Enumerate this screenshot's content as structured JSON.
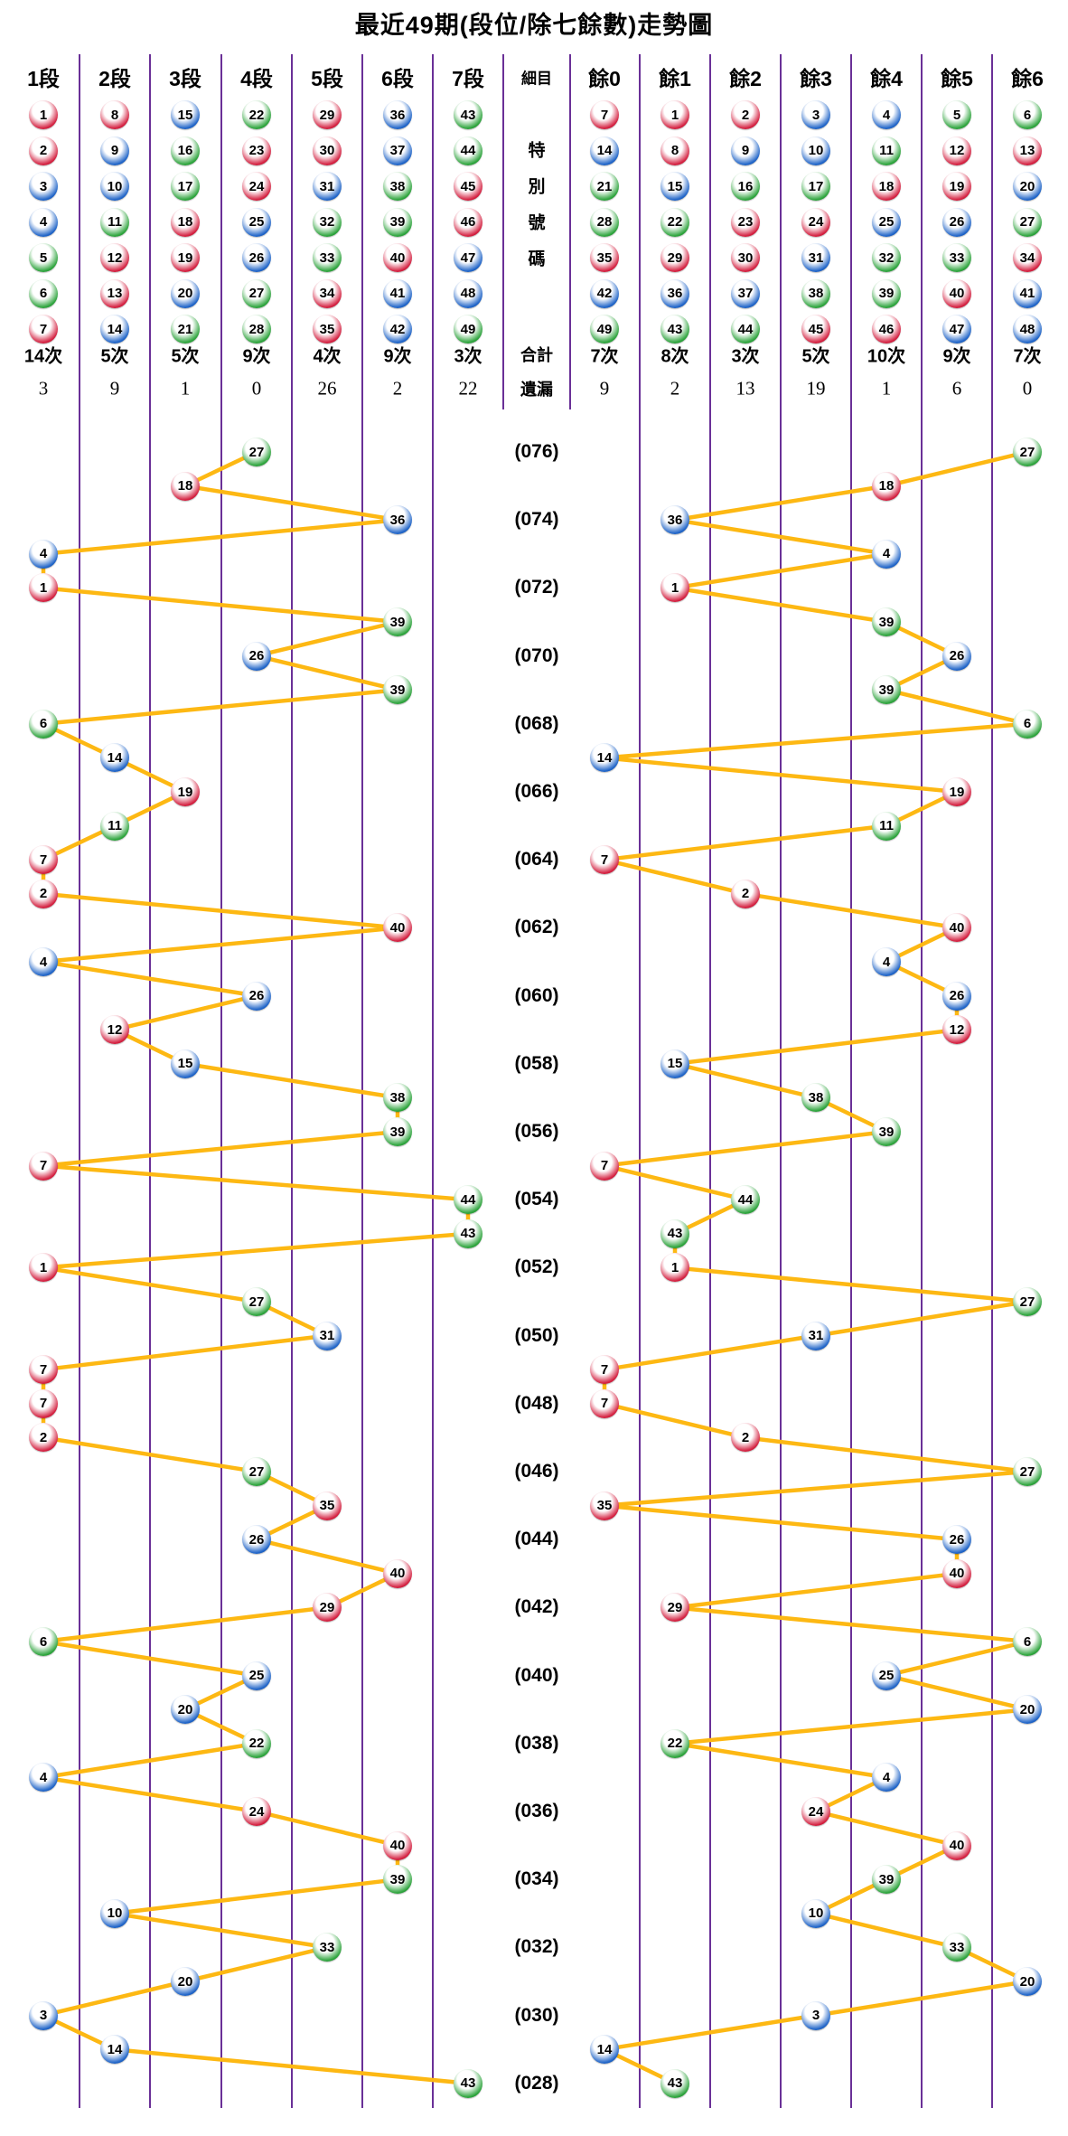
{
  "title": "最近49期(段位/除七餘數)走勢圖",
  "header": {
    "left": [
      "1段",
      "2段",
      "3段",
      "4段",
      "5段",
      "6段",
      "7段"
    ],
    "middle": "細目",
    "right": [
      "餘0",
      "餘1",
      "餘2",
      "餘3",
      "餘4",
      "餘5",
      "餘6"
    ]
  },
  "special_vertical_label": "特別號碼",
  "grid": {
    "left_columns": [
      [
        1,
        2,
        3,
        4,
        5,
        6,
        7
      ],
      [
        8,
        9,
        10,
        11,
        12,
        13,
        14
      ],
      [
        15,
        16,
        17,
        18,
        19,
        20,
        21
      ],
      [
        22,
        23,
        24,
        25,
        26,
        27,
        28
      ],
      [
        29,
        30,
        31,
        32,
        33,
        34,
        35
      ],
      [
        36,
        37,
        38,
        39,
        40,
        41,
        42
      ],
      [
        43,
        44,
        45,
        46,
        47,
        48,
        49
      ]
    ],
    "right_columns": [
      [
        7,
        14,
        21,
        28,
        35,
        42,
        49
      ],
      [
        1,
        8,
        15,
        22,
        29,
        36,
        43
      ],
      [
        2,
        9,
        16,
        23,
        30,
        37,
        44
      ],
      [
        3,
        10,
        17,
        24,
        31,
        38,
        45
      ],
      [
        4,
        11,
        18,
        25,
        32,
        39,
        46
      ],
      [
        5,
        12,
        19,
        26,
        33,
        40,
        47
      ],
      [
        6,
        13,
        20,
        27,
        34,
        41,
        48
      ]
    ]
  },
  "stats": {
    "totals_label": "合計",
    "misses_label": "遺漏",
    "totals_left": [
      "14次",
      "5次",
      "5次",
      "9次",
      "4次",
      "9次",
      "3次"
    ],
    "totals_right": [
      "7次",
      "8次",
      "3次",
      "5次",
      "10次",
      "9次",
      "7次"
    ],
    "misses_left": [
      "3",
      "9",
      "1",
      "0",
      "26",
      "2",
      "22"
    ],
    "misses_right": [
      "9",
      "2",
      "13",
      "19",
      "1",
      "6",
      "0"
    ]
  },
  "ball_color_groups": {
    "red": [
      1,
      2,
      7,
      8,
      12,
      13,
      18,
      19,
      23,
      24,
      29,
      30,
      34,
      35,
      40,
      45,
      46
    ],
    "blue": [
      3,
      4,
      9,
      10,
      14,
      15,
      20,
      25,
      26,
      31,
      36,
      37,
      41,
      42,
      47,
      48
    ],
    "green": [
      5,
      6,
      11,
      16,
      17,
      21,
      22,
      27,
      28,
      32,
      33,
      38,
      39,
      43,
      44,
      49
    ]
  },
  "colors": {
    "red_ball": "#d42040",
    "blue_ball": "#1f64c8",
    "green_ball": "#2da43c",
    "column_line": "#6a3097",
    "connector": "#fdb813",
    "text": "#000000"
  },
  "chart_data": {
    "type": "scatter",
    "title": "最近49期(段位/除七餘數)走勢圖",
    "rows": 49,
    "numbers": [
      27,
      18,
      36,
      4,
      1,
      39,
      26,
      39,
      6,
      14,
      19,
      11,
      7,
      2,
      40,
      4,
      26,
      12,
      15,
      38,
      39,
      7,
      44,
      43,
      1,
      27,
      31,
      7,
      7,
      2,
      27,
      35,
      26,
      40,
      29,
      6,
      25,
      20,
      22,
      4,
      24,
      40,
      39,
      10,
      33,
      20,
      3,
      14,
      43
    ],
    "period_labels": [
      "(076)",
      "(074)",
      "(072)",
      "(070)",
      "(068)",
      "(066)",
      "(064)",
      "(062)",
      "(060)",
      "(058)",
      "(056)",
      "(054)",
      "(052)",
      "(050)",
      "(048)",
      "(046)",
      "(044)",
      "(042)",
      "(040)",
      "(038)",
      "(036)",
      "(034)",
      "(032)",
      "(030)",
      "(028)"
    ],
    "label_every_n_rows": 2,
    "left_axis_categories": [
      "1段",
      "2段",
      "3段",
      "4段",
      "5段",
      "6段",
      "7段"
    ],
    "left_axis_rule": "segment = ceil(number / 7)",
    "right_axis_categories": [
      "餘0",
      "餘1",
      "餘2",
      "餘3",
      "餘4",
      "餘5",
      "餘6"
    ],
    "right_axis_rule": "remainder = number mod 7",
    "legend_position": "none",
    "grid_lines": "vertical-only"
  }
}
